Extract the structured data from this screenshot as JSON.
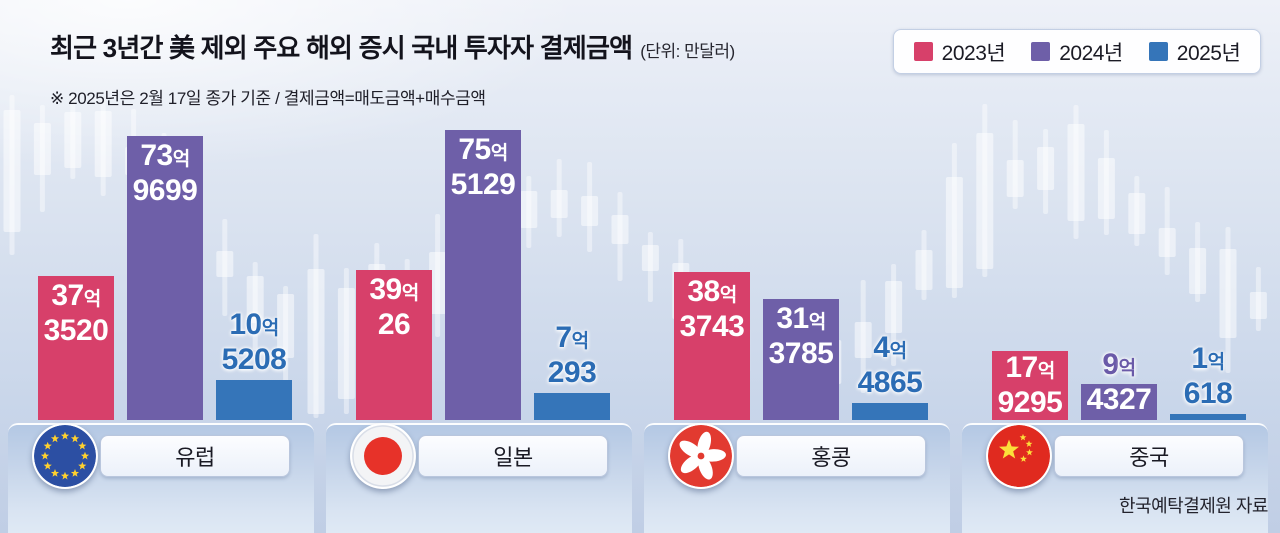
{
  "title": {
    "text": "최근 3년간 美 제외 주요 해외 증시 국내 투자자 결제금액",
    "unit": "(단위: 만달러)"
  },
  "note": "※ 2025년은 2월 17일 종가 기준 / 결제금액=매도금액+매수금액",
  "source": "한국예탁결제원 자료",
  "legend": [
    {
      "label": "2023년",
      "color": "#d7406a"
    },
    {
      "label": "2024년",
      "color": "#6e5fa8"
    },
    {
      "label": "2025년",
      "color": "#3575b9"
    }
  ],
  "colors": {
    "bar_2023": "#d7406a",
    "bar_2024": "#6e5fa8",
    "bar_2025": "#3575b9",
    "label_above_blue": "#2b6cb4",
    "label_above_purple": "#6a5aa8"
  },
  "chart_data": {
    "type": "bar",
    "title": "최근 3년간 美 제외 주요 해외 증시 국내 투자자 결제금액",
    "unit": "만달러",
    "categories": [
      "유럽",
      "일본",
      "홍콩",
      "중국"
    ],
    "series": [
      {
        "name": "2023년",
        "color": "#d7406a",
        "values": [
          373520,
          390026,
          383743,
          179295
        ]
      },
      {
        "name": "2024년",
        "color": "#6e5fa8",
        "values": [
          739699,
          755129,
          313785,
          94327
        ]
      },
      {
        "name": "2025년",
        "color": "#3575b9",
        "values": [
          105208,
          70293,
          44865,
          10618
        ]
      }
    ],
    "value_labels": [
      [
        "37억3520",
        "39억26",
        "38억3743",
        "17억9295"
      ],
      [
        "73억9699",
        "75억5129",
        "31억3785",
        "9억4327"
      ],
      [
        "10억5208",
        "7억293",
        "4억4865",
        "1억618"
      ]
    ],
    "legend_position": "top-right",
    "grid": false,
    "note": "2025년은 2월 17일 종가 기준 / 결제금액=매도금액+매수금액"
  },
  "groups": [
    {
      "name": "유럽",
      "flag": "eu",
      "bars": [
        {
          "num": "37",
          "suffix": "억",
          "rest": "3520",
          "value": 373520,
          "label_pos": "inside"
        },
        {
          "num": "73",
          "suffix": "억",
          "rest": "9699",
          "value": 739699,
          "label_pos": "inside"
        },
        {
          "num": "10",
          "suffix": "억",
          "rest": "5208",
          "value": 105208,
          "label_pos": "above"
        }
      ]
    },
    {
      "name": "일본",
      "flag": "japan",
      "bars": [
        {
          "num": "39",
          "suffix": "억",
          "rest": "26",
          "value": 390026,
          "label_pos": "inside"
        },
        {
          "num": "75",
          "suffix": "억",
          "rest": "5129",
          "value": 755129,
          "label_pos": "inside"
        },
        {
          "num": "7",
          "suffix": "억",
          "rest": "293",
          "value": 70293,
          "label_pos": "above"
        }
      ]
    },
    {
      "name": "홍콩",
      "flag": "hongkong",
      "bars": [
        {
          "num": "38",
          "suffix": "억",
          "rest": "3743",
          "value": 383743,
          "label_pos": "inside"
        },
        {
          "num": "31",
          "suffix": "억",
          "rest": "3785",
          "value": 313785,
          "label_pos": "inside"
        },
        {
          "num": "4",
          "suffix": "억",
          "rest": "4865",
          "value": 44865,
          "label_pos": "above"
        }
      ]
    },
    {
      "name": "중국",
      "flag": "china",
      "bars": [
        {
          "num": "17",
          "suffix": "억",
          "rest": "9295",
          "value": 179295,
          "label_pos": "inside"
        },
        {
          "num": "9",
          "suffix": "억",
          "rest": "4327",
          "value": 94327,
          "label_pos": "split"
        },
        {
          "num": "1",
          "suffix": "억",
          "rest": "618",
          "value": 10618,
          "label_pos": "above"
        }
      ]
    }
  ]
}
